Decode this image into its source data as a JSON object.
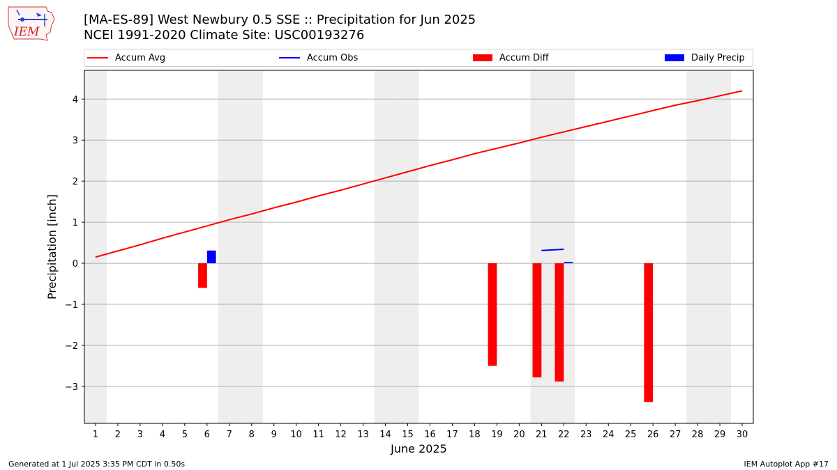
{
  "header": {
    "title_line1": "[MA-ES-89] West Newbury 0.5 SSE :: Precipitation for Jun 2025",
    "title_line2": "NCEI 1991-2020 Climate Site: USC00193276",
    "logo_text": "IEM"
  },
  "footer": {
    "generated": "Generated at 1 Jul 2025 3:35 PM CDT in 0.50s",
    "app": "IEM Autoplot App #17"
  },
  "colors": {
    "avg": "#ff0000",
    "obs": "#0000ff",
    "diff": "#ff0000",
    "daily": "#0000ff",
    "weekend_band": "#eeeeee",
    "grid": "#b0b0b0"
  },
  "chart_data": {
    "type": "bar",
    "xlabel": "June 2025",
    "ylabel": "Precipitation [inch]",
    "xlim": [
      0.5,
      30.5
    ],
    "ylim": [
      -3.9,
      4.7
    ],
    "x_ticks": [
      1,
      2,
      3,
      4,
      5,
      6,
      7,
      8,
      9,
      10,
      11,
      12,
      13,
      14,
      15,
      16,
      17,
      18,
      19,
      20,
      21,
      22,
      23,
      24,
      25,
      26,
      27,
      28,
      29,
      30
    ],
    "y_ticks": [
      4,
      3,
      2,
      1,
      0,
      -1,
      -2,
      -3
    ],
    "y_tick_labels": [
      "4",
      "3",
      "2",
      "1",
      "0",
      "−1",
      "−2",
      "−3"
    ],
    "grid": "horizontal",
    "weekend_days": [
      1,
      7,
      8,
      14,
      15,
      21,
      22,
      28,
      29
    ],
    "legend": {
      "placement": "top",
      "entries": [
        {
          "label": "Accum Avg",
          "kind": "line",
          "color": "#ff0000"
        },
        {
          "label": "Accum Obs",
          "kind": "line",
          "color": "#0000ff"
        },
        {
          "label": "Accum Diff",
          "kind": "patch",
          "color": "#ff0000"
        },
        {
          "label": "Daily Precip",
          "kind": "patch",
          "color": "#0000ff"
        }
      ]
    },
    "series": [
      {
        "name": "Accum Avg",
        "type": "line",
        "x": [
          1,
          2,
          3,
          4,
          5,
          6,
          7,
          8,
          9,
          10,
          11,
          12,
          13,
          14,
          15,
          16,
          17,
          18,
          19,
          20,
          21,
          22,
          23,
          24,
          25,
          26,
          27,
          28,
          29,
          30
        ],
        "values": [
          0.15,
          0.3,
          0.45,
          0.61,
          0.76,
          0.91,
          1.06,
          1.2,
          1.35,
          1.49,
          1.64,
          1.78,
          1.93,
          2.08,
          2.23,
          2.38,
          2.52,
          2.67,
          2.8,
          2.93,
          3.07,
          3.2,
          3.33,
          3.46,
          3.59,
          3.72,
          3.85,
          3.96,
          4.08,
          4.2
        ]
      },
      {
        "name": "Accum Obs",
        "type": "line",
        "segments": [
          {
            "x": [
              21,
              22
            ],
            "values": [
              0.31,
              0.34
            ]
          }
        ]
      },
      {
        "name": "Accum Diff",
        "type": "bar",
        "x": [
          6,
          19,
          21,
          22,
          26
        ],
        "values": [
          -0.6,
          -2.5,
          -2.78,
          -2.88,
          -3.38
        ]
      },
      {
        "name": "Daily Precip",
        "type": "bar",
        "x": [
          6,
          22
        ],
        "values": [
          0.31,
          0.03
        ]
      }
    ]
  }
}
